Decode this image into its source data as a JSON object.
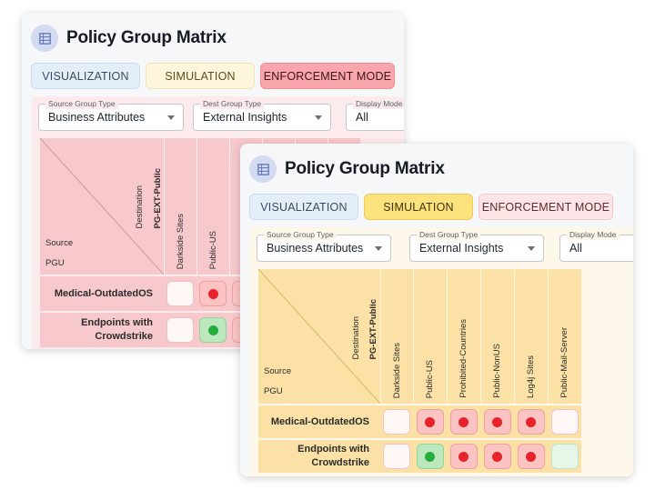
{
  "title": "Policy Group Matrix",
  "tabs": {
    "visualization": "VISUALIZATION",
    "simulation": "SIMULATION",
    "enforcement": "ENFORCEMENT MODE"
  },
  "filters": {
    "source_group_type": {
      "label": "Source Group Type",
      "value": "Business Attributes"
    },
    "dest_group_type": {
      "label": "Dest Group Type",
      "value": "External Insights"
    },
    "display_mode": {
      "label": "Display Mode",
      "value": "All"
    }
  },
  "matrix": {
    "corner": {
      "source": "Source",
      "pgu": "PGU",
      "destination": "Destination",
      "destination_group": "PG-EXT-Public"
    },
    "columns": [
      "Darkside Sites",
      "Public-US",
      "Prohibited-Countries",
      "Public-NonUS",
      "Log4j Sites",
      "Public-Mail-Server"
    ],
    "rows": [
      {
        "label": "Medical-OutdatedOS",
        "cells": [
          "empty",
          "red",
          "red",
          "red",
          "red",
          "empty"
        ]
      },
      {
        "label": "Endpoints with Crowdstrike",
        "cells": [
          "empty",
          "green",
          "red",
          "red",
          "red",
          "greenlight"
        ]
      }
    ]
  },
  "back_card": {
    "active_tab": "enforcement",
    "visible_columns": [
      "Darkside Sites",
      "Public-US"
    ],
    "rows": [
      {
        "label": "Medical-OutdatedOS",
        "cells": [
          "empty",
          "red"
        ]
      },
      {
        "label": "Endpoints with Crowdstrike",
        "cells": [
          "empty",
          "green"
        ]
      }
    ]
  },
  "front_card": {
    "active_tab": "simulation"
  },
  "colors": {
    "enforcement_active": "#f8a5ab",
    "simulation_active": "#fbe27c",
    "deny_dot": "#e8222a",
    "allow_dot": "#26ad3c"
  },
  "icons": {
    "title_icon": "matrix-grid-icon",
    "dropdown": "chevron-down-icon"
  }
}
